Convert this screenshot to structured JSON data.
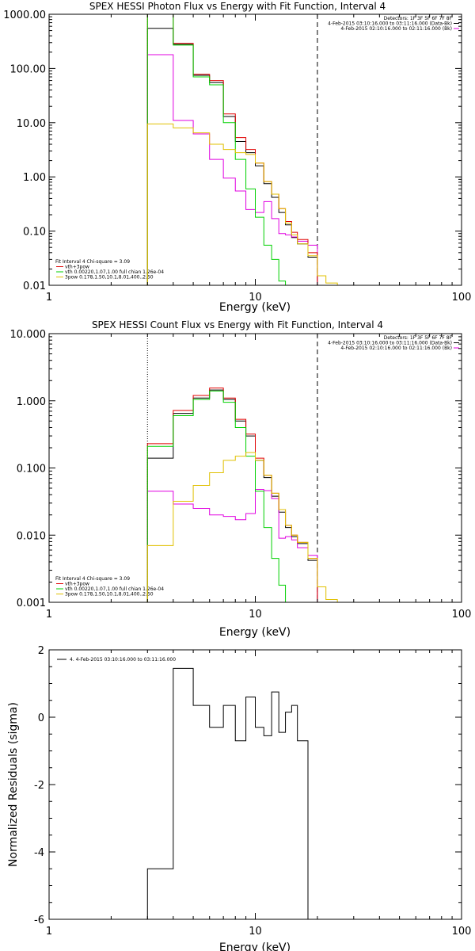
{
  "chart_data": [
    {
      "type": "line",
      "title": "SPEX HESSI Photon Flux vs Energy with Fit Function, Interval 4",
      "xlabel": "Energy (keV)",
      "ylabel": "",
      "xscale": "log",
      "yscale": "log",
      "xlim": [
        1,
        100
      ],
      "ylim": [
        0.01,
        1000
      ],
      "x_tick_labels": [
        "1",
        "10",
        "100"
      ],
      "y_tick_labels": [
        "1000.00",
        "100.00",
        "10.00",
        "1.00",
        "0.10",
        "0.01"
      ],
      "header_text": [
        "Detectors: 1F 3F 5F 6F 7F 8F",
        "4-Feb-2015 03:10:16.000 to 03:11:16.000 (Data-Bk)",
        "4-Feb-2015 02:10:16.000 to 02:11:16.000 (Bk)"
      ],
      "fit_text": [
        "Fit Interval  4    Chi-square = 3.09",
        "vth+3pow",
        "vth 0.00220,1.07,1.00  full chian 1.26e-04",
        "3pow 0.178,1.50,10.1,8.01,400.,2.50"
      ],
      "vlines": [
        {
          "x": 3.0,
          "style": "dotted",
          "color": "#e0a000"
        },
        {
          "x": 20.0,
          "style": "dashed",
          "color": "#000000"
        }
      ],
      "series": [
        {
          "name": "4-Feb-2015 03:10:16.000 to 03:11:16.000 (Data-Bk)",
          "color": "#000000",
          "edges": [
            3.0,
            4.0,
            5.0,
            6.0,
            7.0,
            8.0,
            9.0,
            10.0,
            11.0,
            12.0,
            13.0,
            14.0,
            15.0,
            16.0,
            18.0,
            20.0
          ],
          "values": [
            550,
            280,
            75,
            55,
            13,
            4.5,
            2.8,
            1.6,
            0.75,
            0.42,
            0.22,
            0.13,
            0.076,
            0.058,
            0.033
          ]
        },
        {
          "name": "4-Feb-2015 02:10:16.000 to 02:11:16.000 (Bk)",
          "color": "#e000e0",
          "edges": [
            3.0,
            4.0,
            5.0,
            6.0,
            7.0,
            8.0,
            9.0,
            10.0,
            11.0,
            12.0,
            13.0,
            14.0,
            15.0,
            16.0,
            18.0,
            20.0
          ],
          "values": [
            180,
            11,
            6.2,
            2.1,
            0.95,
            0.55,
            0.25,
            0.22,
            0.35,
            0.17,
            0.09,
            0.085,
            0.078,
            0.065,
            0.055
          ]
        },
        {
          "name": "vth+3pow",
          "color": "#e00000",
          "edges": [
            3.0,
            4.0,
            5.0,
            6.0,
            7.0,
            8.0,
            9.0,
            10.0,
            11.0,
            12.0,
            13.0,
            14.0,
            15.0,
            16.0,
            18.0,
            20.0
          ],
          "values": [
            1000,
            290,
            78,
            60,
            14.5,
            5.3,
            3.2,
            1.8,
            0.82,
            0.48,
            0.26,
            0.15,
            0.095,
            0.07,
            0.04
          ]
        },
        {
          "name": "vth 0.00220,1.07,1.00  full chian 1.26e-04",
          "color": "#00d000",
          "edges": [
            3.0,
            4.0,
            5.0,
            6.0,
            7.0,
            8.0,
            9.0,
            10.0,
            11.0,
            12.0,
            13.0,
            14.0
          ],
          "values": [
            1000,
            270,
            70,
            50,
            10,
            2.1,
            0.6,
            0.18,
            0.055,
            0.03,
            0.012
          ]
        },
        {
          "name": "3pow 0.178,1.50,10.1,8.01,400.,2.50",
          "color": "#e0c000",
          "edges": [
            3.0,
            4.0,
            5.0,
            6.0,
            7.0,
            8.0,
            9.0,
            10.0,
            11.0,
            12.0,
            13.0,
            14.0,
            15.0,
            16.0,
            18.0,
            20.0,
            22.0,
            25.0
          ],
          "values": [
            9.5,
            8.0,
            6.5,
            4.0,
            3.2,
            2.8,
            2.6,
            1.8,
            0.82,
            0.48,
            0.26,
            0.14,
            0.085,
            0.058,
            0.035,
            0.015,
            0.011
          ]
        }
      ]
    },
    {
      "type": "line",
      "title": "SPEX HESSI Count Flux vs Energy with Fit Function, Interval 4",
      "xlabel": "Energy (keV)",
      "ylabel": "",
      "xscale": "log",
      "yscale": "log",
      "xlim": [
        1,
        100
      ],
      "ylim": [
        0.001,
        10
      ],
      "x_tick_labels": [
        "1",
        "10",
        "100"
      ],
      "y_tick_labels": [
        "10.000",
        "1.000",
        "0.100",
        "0.010",
        "0.001"
      ],
      "header_text": [
        "Detectors: 1F 3F 5F 6F 7F 8F",
        "4-Feb-2015 03:10:16.000 to 03:11:16.000 (Data-Bk)",
        "4-Feb-2015 02:10:16.000 to 02:11:16.000 (Bk)"
      ],
      "fit_text": [
        "Fit Interval  4    Chi-square = 3.09",
        "vth+3pow",
        "vth 0.00220,1.07,1.00  full chian 1.26e-04",
        "3pow 0.178,1.50,10.1,8.01,400.,2.50"
      ],
      "vlines": [
        {
          "x": 3.0,
          "style": "dotted",
          "color": "#000000"
        },
        {
          "x": 20.0,
          "style": "dashed",
          "color": "#000000"
        }
      ],
      "series": [
        {
          "name": "4-Feb-2015 03:10:16.000 to 03:11:16.000 (Data-Bk)",
          "color": "#000000",
          "edges": [
            3.0,
            4.0,
            5.0,
            6.0,
            7.0,
            8.0,
            9.0,
            10.0,
            11.0,
            12.0,
            13.0,
            14.0,
            15.0,
            16.0,
            18.0,
            20.0
          ],
          "values": [
            0.14,
            0.65,
            1.1,
            1.45,
            1.05,
            0.5,
            0.3,
            0.13,
            0.072,
            0.038,
            0.022,
            0.013,
            0.0095,
            0.0075,
            0.0042
          ]
        },
        {
          "name": "4-Feb-2015 02:10:16.000 to 02:11:16.000 (Bk)",
          "color": "#e000e0",
          "edges": [
            3.0,
            4.0,
            5.0,
            6.0,
            7.0,
            8.0,
            9.0,
            10.0,
            11.0,
            12.0,
            13.0,
            14.0,
            15.0,
            16.0,
            18.0,
            20.0
          ],
          "values": [
            0.045,
            0.029,
            0.025,
            0.02,
            0.019,
            0.017,
            0.021,
            0.048,
            0.046,
            0.035,
            0.009,
            0.0095,
            0.0085,
            0.0065,
            0.005
          ]
        },
        {
          "name": "vth+3pow",
          "color": "#e00000",
          "edges": [
            3.0,
            4.0,
            5.0,
            6.0,
            7.0,
            8.0,
            9.0,
            10.0,
            11.0,
            12.0,
            13.0,
            14.0,
            15.0,
            16.0,
            18.0,
            20.0
          ],
          "values": [
            0.23,
            0.72,
            1.2,
            1.55,
            1.1,
            0.53,
            0.32,
            0.14,
            0.078,
            0.042,
            0.024,
            0.014,
            0.01,
            0.0078,
            0.0045
          ]
        },
        {
          "name": "vth 0.00220,1.07,1.00  full chian 1.26e-04",
          "color": "#00d000",
          "edges": [
            3.0,
            4.0,
            5.0,
            6.0,
            7.0,
            8.0,
            9.0,
            10.0,
            11.0,
            12.0,
            13.0,
            14.0
          ],
          "values": [
            0.21,
            0.6,
            1.05,
            1.4,
            0.95,
            0.4,
            0.15,
            0.045,
            0.013,
            0.0045,
            0.0018
          ]
        },
        {
          "name": "3pow 0.178,1.50,10.1,8.01,400.,2.50",
          "color": "#e0c000",
          "edges": [
            3.0,
            4.0,
            5.0,
            6.0,
            7.0,
            8.0,
            9.0,
            10.0,
            11.0,
            12.0,
            13.0,
            14.0,
            15.0,
            16.0,
            18.0,
            20.0,
            22.0,
            25.0
          ],
          "values": [
            0.007,
            0.032,
            0.055,
            0.085,
            0.13,
            0.15,
            0.17,
            0.13,
            0.078,
            0.042,
            0.024,
            0.014,
            0.01,
            0.0078,
            0.0045,
            0.0017,
            0.0011
          ]
        }
      ]
    },
    {
      "type": "line",
      "title": "",
      "xlabel": "Energy (keV)",
      "ylabel": "Normalized Residuals (sigma)",
      "xscale": "log",
      "yscale": "linear",
      "xlim": [
        1,
        100
      ],
      "ylim": [
        -6,
        2
      ],
      "x_tick_labels": [
        "1",
        "10",
        "100"
      ],
      "y_tick_labels": [
        "2",
        "0",
        "-2",
        "-4",
        "-6"
      ],
      "y_ticks": [
        2,
        0,
        -2,
        -4,
        -6
      ],
      "legend_text": "4.  4-Feb-2015 03:10:16.000 to 03:11:16.000",
      "series": [
        {
          "name": "4.  4-Feb-2015 03:10:16.000 to 03:11:16.000",
          "color": "#000000",
          "edges": [
            3.0,
            4.0,
            5.0,
            6.0,
            7.0,
            8.0,
            9.0,
            10.0,
            11.0,
            12.0,
            13.0,
            14.0,
            15.0,
            16.0,
            18.0,
            20.0
          ],
          "values": [
            -4.5,
            1.45,
            0.35,
            -0.3,
            0.35,
            -0.7,
            0.6,
            -0.3,
            -0.55,
            0.75,
            -0.45,
            0.15,
            0.35,
            -0.7,
            -6
          ]
        }
      ]
    }
  ]
}
